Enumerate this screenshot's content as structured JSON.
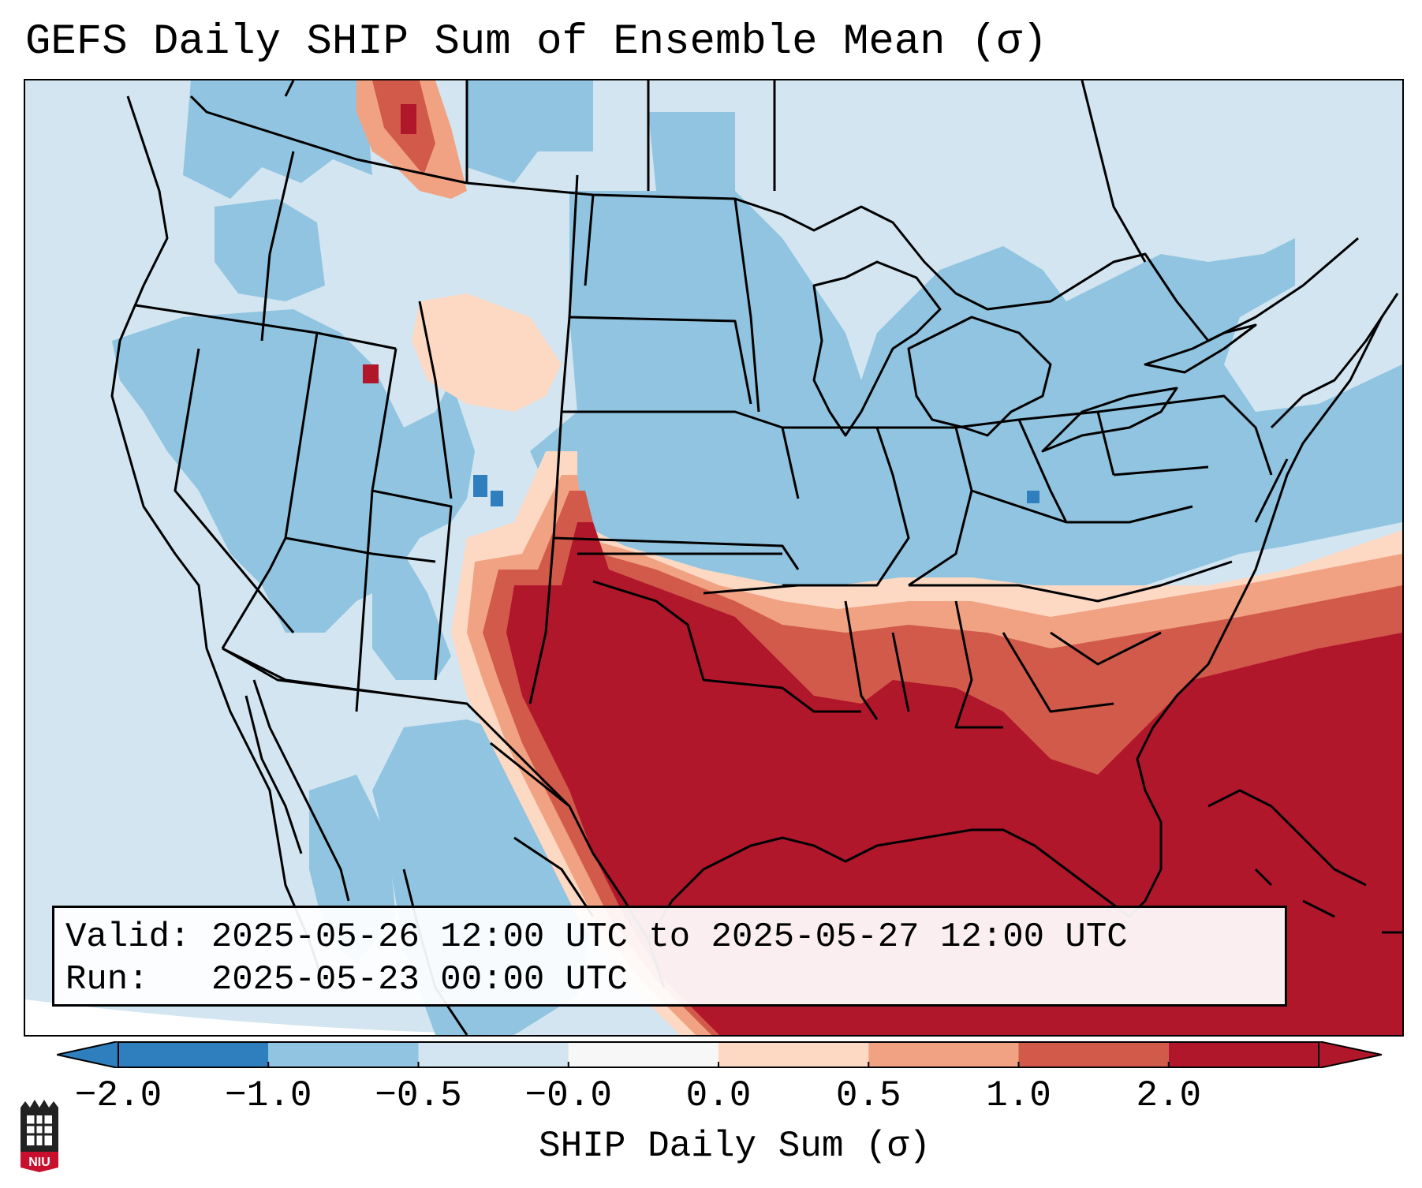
{
  "title": "GEFS Daily SHIP Sum of Ensemble Mean (σ)",
  "info": {
    "valid_label": "Valid:",
    "valid_text": "2025-05-26 12:00 UTC to 2025-05-27 12:00 UTC",
    "run_label": "Run:",
    "run_text": "2025-05-23 00:00 UTC"
  },
  "colorbar": {
    "label": "SHIP Daily Sum (σ)",
    "ticks": [
      "−2.0",
      "−1.0",
      "−0.5",
      "−0.0",
      "0.0",
      "0.5",
      "1.0",
      "2.0"
    ],
    "bin_colors": [
      "#2f7fbe",
      "#90c4e0",
      "#d2e5f0",
      "#f7f7f7",
      "#fdd9c4",
      "#f0a283",
      "#d25a4b",
      "#b1172a"
    ],
    "extend_low_color": "#2f7fbe",
    "extend_high_color": "#b1172a"
  },
  "map": {
    "region": "Continental United States",
    "field": "SHIP daily sum standardized anomaly",
    "max_anomaly_area": "Southern Plains, Texas, Gulf Coast and Gulf of Mexico",
    "colors": {
      "ocean_light": "#d2e5f0",
      "land_blue": "#90c4e0",
      "deep_blue": "#2f7fbe",
      "peach": "#fdd9c4",
      "salmon": "#f0a283",
      "red": "#d25a4b",
      "dark_red": "#b1172a",
      "border": "#000000"
    }
  },
  "logo": {
    "text": "NIU",
    "color": "#c8102e"
  }
}
